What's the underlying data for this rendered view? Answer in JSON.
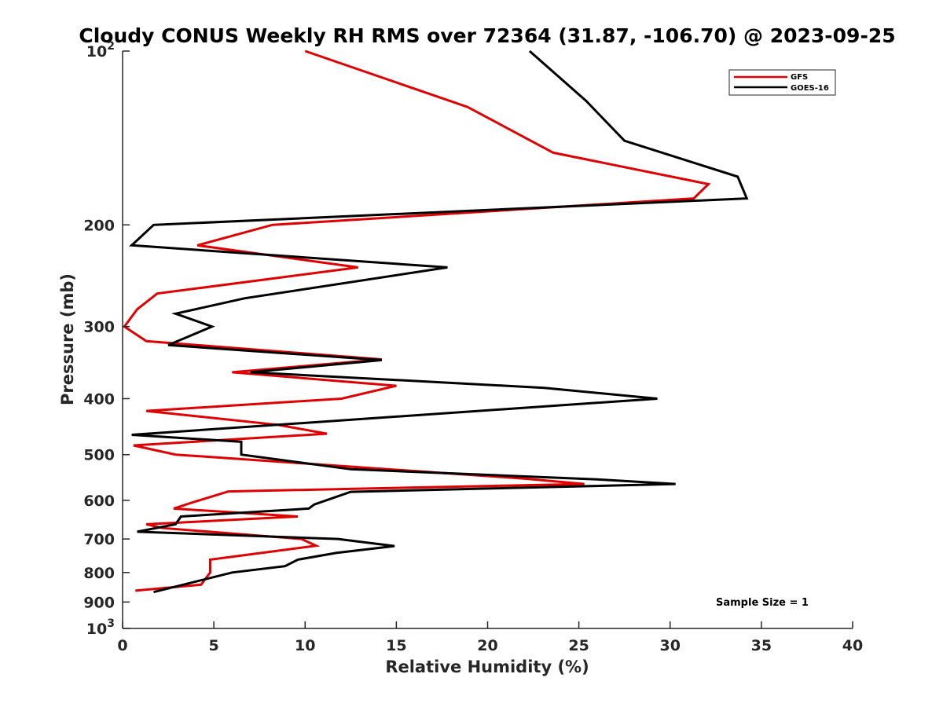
{
  "chart_data": {
    "type": "line",
    "title": "Cloudy CONUS Weekly RH RMS over 72364 (31.87, -106.70) @ 2023-09-25",
    "xlabel": "Relative Humidity (%)",
    "ylabel": "Pressure (mb)",
    "xlim": [
      0,
      40
    ],
    "ylim": [
      100,
      1000
    ],
    "y_scale": "log",
    "y_reversed": true,
    "x_ticks": [
      "0",
      "5",
      "10",
      "15",
      "20",
      "25",
      "30",
      "35",
      "40"
    ],
    "y_ticks": [
      {
        "value": 100,
        "label": "10",
        "sup": "2"
      },
      {
        "value": 200,
        "label": "200",
        "sup": ""
      },
      {
        "value": 300,
        "label": "300",
        "sup": ""
      },
      {
        "value": 400,
        "label": "400",
        "sup": ""
      },
      {
        "value": 500,
        "label": "500",
        "sup": ""
      },
      {
        "value": 600,
        "label": "600",
        "sup": ""
      },
      {
        "value": 700,
        "label": "700",
        "sup": ""
      },
      {
        "value": 800,
        "label": "800",
        "sup": ""
      },
      {
        "value": 900,
        "label": "900",
        "sup": ""
      },
      {
        "value": 1000,
        "label": "10",
        "sup": "3"
      }
    ],
    "legend_position": "top-right",
    "grid": false,
    "annotation": "Sample Size = 1",
    "series": [
      {
        "name": "GFS",
        "color": "#e00000",
        "points": [
          [
            10.0,
            100
          ],
          [
            18.9,
            125
          ],
          [
            23.6,
            150
          ],
          [
            32.1,
            170
          ],
          [
            31.3,
            180
          ],
          [
            8.2,
            200
          ],
          [
            4.1,
            217
          ],
          [
            12.9,
            237
          ],
          [
            1.9,
            263
          ],
          [
            0.8,
            280
          ],
          [
            0.1,
            300
          ],
          [
            1.3,
            318
          ],
          [
            14.2,
            342
          ],
          [
            6.0,
            360
          ],
          [
            15.0,
            380
          ],
          [
            12.0,
            400
          ],
          [
            1.3,
            420
          ],
          [
            8.5,
            444
          ],
          [
            11.2,
            460
          ],
          [
            0.6,
            482
          ],
          [
            2.9,
            500
          ],
          [
            22.0,
            550
          ],
          [
            25.3,
            562
          ],
          [
            5.8,
            579
          ],
          [
            3.9,
            604
          ],
          [
            2.8,
            620
          ],
          [
            9.6,
            640
          ],
          [
            1.3,
            660
          ],
          [
            2.2,
            670
          ],
          [
            9.8,
            700
          ],
          [
            10.6,
            719
          ],
          [
            6.9,
            745
          ],
          [
            4.8,
            760
          ],
          [
            4.8,
            800
          ],
          [
            4.3,
            840
          ],
          [
            0.7,
            860
          ]
        ]
      },
      {
        "name": "GOES-16",
        "color": "#000000",
        "points": [
          [
            22.3,
            100
          ],
          [
            25.4,
            122
          ],
          [
            27.5,
            143
          ],
          [
            33.7,
            165
          ],
          [
            34.2,
            180
          ],
          [
            1.7,
            200
          ],
          [
            0.5,
            217
          ],
          [
            17.8,
            237
          ],
          [
            6.7,
            268
          ],
          [
            2.9,
            285
          ],
          [
            4.9,
            300
          ],
          [
            2.5,
            323
          ],
          [
            14.2,
            343
          ],
          [
            7.0,
            360
          ],
          [
            23.1,
            383
          ],
          [
            29.3,
            400
          ],
          [
            0.5,
            462
          ],
          [
            6.5,
            475
          ],
          [
            6.5,
            500
          ],
          [
            12.5,
            530
          ],
          [
            26.0,
            552
          ],
          [
            30.3,
            562
          ],
          [
            12.5,
            580
          ],
          [
            10.5,
            610
          ],
          [
            10.2,
            620
          ],
          [
            3.2,
            640
          ],
          [
            2.9,
            660
          ],
          [
            0.8,
            680
          ],
          [
            11.8,
            700
          ],
          [
            14.9,
            720
          ],
          [
            11.7,
            740
          ],
          [
            9.6,
            760
          ],
          [
            8.9,
            780
          ],
          [
            6.0,
            800
          ],
          [
            1.7,
            865
          ]
        ]
      }
    ]
  }
}
